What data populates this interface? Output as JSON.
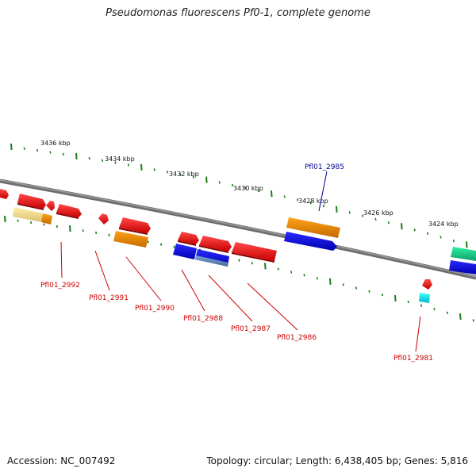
{
  "title": "Pseudomonas fluorescens Pf0-1, complete genome",
  "footer": {
    "accession": "Accession: NC_007492",
    "stats": "Topology: circular; Length: 6,438,405 bp; Genes: 5,816"
  },
  "colors": {
    "backbone": "#808080",
    "tick": "#1a7f1a",
    "forward_gene": "#ff0000",
    "reverse_gene": "#0000ff",
    "label_red": "#cc0000",
    "label_blue": "#000099"
  },
  "kbp_labels": [
    "3436 kbp",
    "3434 kbp",
    "3432 kbp",
    "3430 kbp",
    "3428 kbp",
    "3426 kbp",
    "3424 kbp"
  ],
  "gene_labels": [
    {
      "id": "Pfl01_2992",
      "color": "#cc0000"
    },
    {
      "id": "Pfl01_2991",
      "color": "#cc0000"
    },
    {
      "id": "Pfl01_2990",
      "color": "#cc0000"
    },
    {
      "id": "Pfl01_2988",
      "color": "#cc0000"
    },
    {
      "id": "Pfl01_2987",
      "color": "#cc0000"
    },
    {
      "id": "Pfl01_2986",
      "color": "#cc0000"
    },
    {
      "id": "Pfl01_2985",
      "color": "#000099"
    },
    {
      "id": "Pfl01_2981",
      "color": "#cc0000"
    }
  ]
}
